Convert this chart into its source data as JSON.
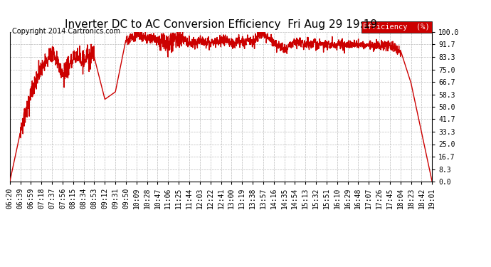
{
  "title": "Inverter DC to AC Conversion Efficiency  Fri Aug 29 19:19",
  "copyright": "Copyright 2014 Cartronics.com",
  "line_color": "#cc0000",
  "background_color": "#ffffff",
  "plot_bg_color": "#ffffff",
  "grid_color": "#bbbbbb",
  "legend_label": "Efficiency  (%)",
  "legend_bg": "#cc0000",
  "legend_fg": "#ffffff",
  "yticks": [
    0.0,
    8.3,
    16.7,
    25.0,
    33.3,
    41.7,
    50.0,
    58.3,
    66.7,
    75.0,
    83.3,
    91.7,
    100.0
  ],
  "xtick_labels": [
    "06:20",
    "06:39",
    "06:59",
    "07:18",
    "07:37",
    "07:56",
    "08:15",
    "08:34",
    "08:53",
    "09:12",
    "09:31",
    "09:50",
    "10:09",
    "10:28",
    "10:47",
    "11:06",
    "11:25",
    "11:44",
    "12:03",
    "12:22",
    "12:41",
    "13:00",
    "13:19",
    "13:38",
    "13:57",
    "14:16",
    "14:35",
    "14:54",
    "15:13",
    "15:32",
    "15:51",
    "16:10",
    "16:29",
    "16:48",
    "17:07",
    "17:26",
    "17:45",
    "18:04",
    "18:23",
    "18:42",
    "19:01"
  ],
  "ylim": [
    0.0,
    100.0
  ],
  "title_fontsize": 11,
  "copyright_fontsize": 7,
  "tick_fontsize": 7,
  "line_width": 1.0
}
